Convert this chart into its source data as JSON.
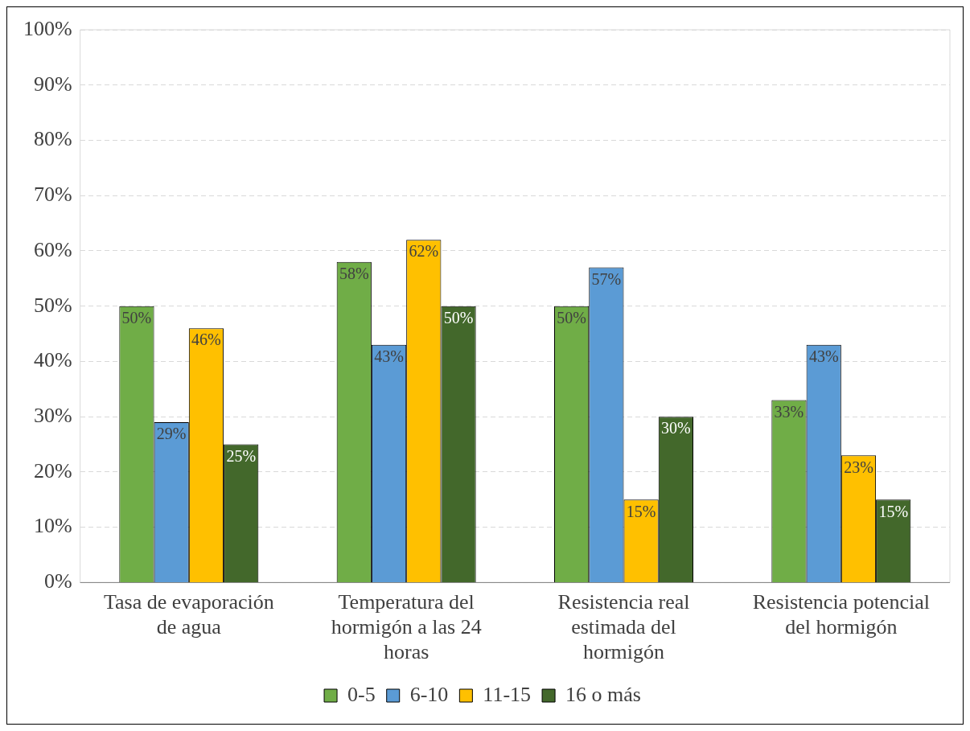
{
  "chart_data": {
    "type": "bar",
    "categories": [
      "Tasa de evaporación de agua",
      "Temperatura del hormigón a las 24 horas",
      "Resistencia real estimada del hormigón",
      "Resistencia potencial del hormigón"
    ],
    "series": [
      {
        "name": "0-5",
        "color": "#70ad47",
        "values": [
          50,
          58,
          50,
          33
        ],
        "value_labels": [
          "50%",
          "58%",
          "50%",
          "33%"
        ]
      },
      {
        "name": "6-10",
        "color": "#5b9bd5",
        "values": [
          29,
          43,
          57,
          43
        ],
        "value_labels": [
          "29%",
          "43%",
          "57%",
          "43%"
        ]
      },
      {
        "name": "11-15",
        "color": "#ffc000",
        "values": [
          46,
          62,
          15,
          23
        ],
        "value_labels": [
          "46%",
          "62%",
          "15%",
          "23%"
        ]
      },
      {
        "name": "16 o más",
        "color": "#43682b",
        "values": [
          25,
          50,
          30,
          15
        ],
        "value_labels": [
          "25%",
          "50%",
          "30%",
          "15%"
        ]
      }
    ],
    "ylim": [
      0,
      100
    ],
    "yticks": [
      {
        "value": 0,
        "label": "0%"
      },
      {
        "value": 10,
        "label": "10%"
      },
      {
        "value": 20,
        "label": "20%"
      },
      {
        "value": 30,
        "label": "30%"
      },
      {
        "value": 40,
        "label": "40%"
      },
      {
        "value": 50,
        "label": "50%"
      },
      {
        "value": 60,
        "label": "60%"
      },
      {
        "value": 70,
        "label": "70%"
      },
      {
        "value": 80,
        "label": "80%"
      },
      {
        "value": 90,
        "label": "90%"
      },
      {
        "value": 100,
        "label": "100%"
      }
    ],
    "grid": "y",
    "legend": "bottom"
  }
}
